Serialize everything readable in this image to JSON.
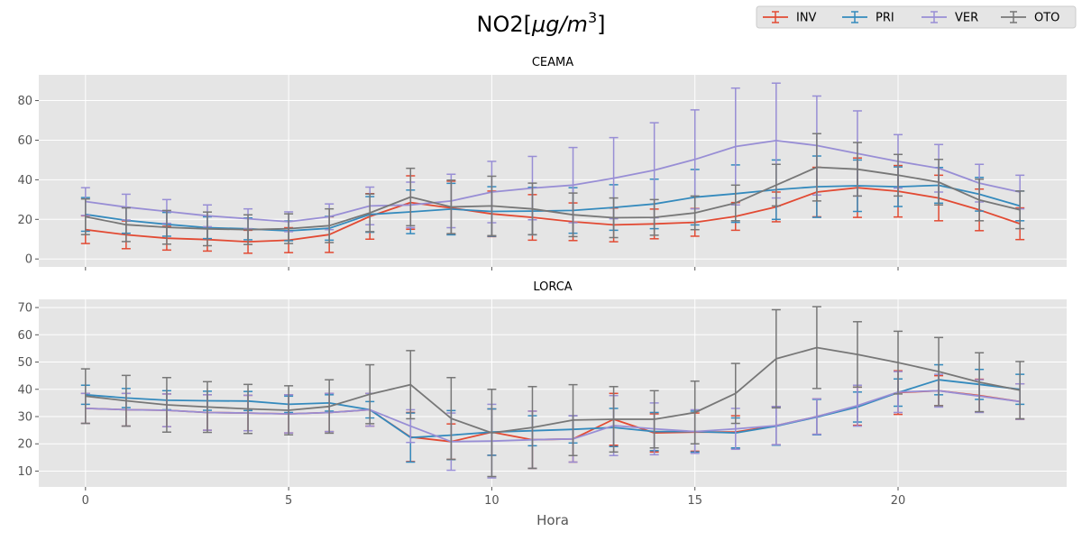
{
  "figure": {
    "title_plain": "NO2[",
    "title_math": "μg/m",
    "title_sup": "3",
    "title_close": "]",
    "xlabel": "Hora"
  },
  "colors": {
    "INV": "#E24A33",
    "PRI": "#348ABD",
    "VER": "#988ED5",
    "OTO": "#777777",
    "panel_bg": "#E5E5E5",
    "grid": "#ffffff"
  },
  "legend": {
    "placement": "top-right",
    "entries": [
      "INV",
      "PRI",
      "VER",
      "OTO"
    ]
  },
  "chart_data": [
    {
      "type": "line",
      "title": "CEAMA",
      "xlabel": "",
      "ylabel": "",
      "xlim": [
        -1.15,
        24.15
      ],
      "ylim": [
        -4,
        93
      ],
      "xticks": [
        0,
        5,
        10,
        15,
        20
      ],
      "yticks": [
        0,
        20,
        40,
        60,
        80
      ],
      "grid": true,
      "error_bars": true,
      "x": [
        0,
        1,
        2,
        3,
        4,
        5,
        6,
        7,
        8,
        9,
        10,
        11,
        12,
        13,
        14,
        15,
        16,
        17,
        18,
        19,
        20,
        21,
        22,
        23
      ],
      "series": [
        {
          "name": "INV",
          "values": [
            14.8,
            12.2,
            10.5,
            9.8,
            8.7,
            9.5,
            12.3,
            21.5,
            28.5,
            25.8,
            22.8,
            21.0,
            18.8,
            17.2,
            17.7,
            18.5,
            21.5,
            26.3,
            33.8,
            36.0,
            34.2,
            30.8,
            24.8,
            17.8
          ],
          "err": [
            7.0,
            7.0,
            6.0,
            5.8,
            5.8,
            6.3,
            9.0,
            11.5,
            13.5,
            13.5,
            11.5,
            11.5,
            9.5,
            8.5,
            7.5,
            7.0,
            7.0,
            7.5,
            12.5,
            15.0,
            13.0,
            11.5,
            10.5,
            8.0
          ]
        },
        {
          "name": "PRI",
          "values": [
            22.5,
            19.5,
            17.5,
            15.8,
            15.2,
            14.2,
            15.5,
            22.5,
            23.8,
            25.2,
            24.0,
            24.2,
            24.5,
            26.0,
            27.8,
            31.2,
            33.0,
            35.0,
            36.5,
            37.0,
            36.5,
            37.2,
            32.7,
            26.8
          ],
          "err": [
            8.5,
            6.5,
            6.0,
            5.5,
            5.5,
            5.0,
            6.0,
            9.0,
            11.0,
            13.0,
            12.5,
            12.0,
            11.5,
            11.5,
            12.5,
            14.0,
            14.5,
            15.0,
            15.5,
            13.0,
            10.0,
            9.0,
            8.5,
            7.5
          ]
        },
        {
          "name": "VER",
          "values": [
            29.0,
            26.2,
            24.0,
            21.8,
            20.3,
            18.8,
            21.3,
            26.8,
            27.3,
            29.3,
            33.8,
            35.8,
            37.3,
            40.8,
            44.8,
            50.3,
            56.8,
            59.8,
            57.3,
            53.3,
            49.3,
            45.8,
            38.3,
            33.8
          ],
          "err": [
            7.0,
            6.5,
            6.0,
            5.5,
            5.0,
            5.0,
            6.5,
            9.5,
            11.5,
            13.5,
            15.5,
            16.0,
            19.0,
            20.5,
            24.0,
            25.0,
            29.5,
            29.0,
            25.0,
            21.5,
            13.5,
            12.0,
            9.5,
            8.5
          ]
        },
        {
          "name": "OTO",
          "values": [
            21.3,
            17.3,
            16.0,
            15.2,
            14.8,
            15.3,
            16.8,
            23.3,
            31.3,
            26.3,
            26.8,
            25.3,
            22.3,
            20.8,
            21.0,
            23.3,
            28.3,
            37.3,
            46.3,
            45.3,
            42.3,
            38.8,
            29.8,
            24.8
          ],
          "err": [
            9.0,
            8.5,
            8.5,
            8.5,
            7.5,
            7.5,
            8.5,
            9.5,
            14.5,
            13.5,
            15.0,
            13.0,
            11.0,
            10.0,
            9.0,
            8.5,
            9.0,
            10.5,
            17.0,
            13.5,
            10.5,
            11.5,
            10.5,
            9.5
          ]
        }
      ]
    },
    {
      "type": "line",
      "title": "LORCA",
      "xlabel": "Hora",
      "ylabel": "",
      "xlim": [
        -1.15,
        24.15
      ],
      "ylim": [
        4.2,
        73
      ],
      "xticks": [
        0,
        5,
        10,
        15,
        20
      ],
      "yticks": [
        10,
        20,
        30,
        40,
        50,
        60,
        70
      ],
      "grid": true,
      "error_bars": true,
      "x": [
        0,
        1,
        2,
        3,
        4,
        5,
        6,
        7,
        8,
        9,
        10,
        11,
        12,
        13,
        14,
        15,
        16,
        17,
        18,
        19,
        20,
        21,
        22,
        23
      ],
      "series": [
        {
          "name": "INV",
          "values": [
            33.0,
            32.5,
            32.3,
            31.5,
            31.3,
            31.0,
            31.5,
            32.5,
            22.5,
            20.8,
            24.3,
            21.5,
            21.8,
            29.0,
            24.0,
            24.3,
            24.3,
            26.7,
            30.0,
            33.8,
            38.8,
            39.5,
            37.7,
            35.5
          ],
          "err": [
            5.5,
            6.0,
            6.0,
            6.5,
            6.5,
            7.0,
            7.0,
            6.0,
            9.0,
            6.5,
            8.5,
            10.5,
            8.5,
            9.5,
            7.0,
            7.0,
            6.0,
            7.0,
            6.5,
            7.0,
            8.0,
            5.5,
            6.0,
            6.5
          ]
        },
        {
          "name": "PRI",
          "values": [
            38.0,
            36.8,
            36.0,
            35.8,
            35.7,
            34.5,
            35.0,
            32.5,
            22.3,
            23.2,
            24.3,
            24.8,
            25.3,
            26.0,
            24.5,
            24.5,
            24.0,
            26.5,
            29.8,
            33.5,
            38.8,
            43.5,
            41.8,
            40.0
          ],
          "err": [
            3.5,
            3.5,
            3.5,
            3.5,
            3.5,
            3.0,
            3.0,
            3.0,
            9.0,
            9.0,
            8.5,
            5.5,
            5.0,
            7.0,
            7.0,
            7.5,
            5.5,
            7.0,
            6.5,
            5.5,
            5.0,
            5.5,
            5.5,
            5.5
          ]
        },
        {
          "name": "VER",
          "values": [
            33.0,
            32.5,
            32.3,
            31.5,
            31.3,
            31.0,
            31.5,
            32.5,
            26.5,
            20.8,
            21.0,
            21.5,
            21.8,
            26.7,
            25.5,
            24.5,
            25.5,
            26.7,
            30.0,
            34.0,
            39.0,
            39.5,
            37.5,
            35.5
          ],
          "err": [
            5.5,
            6.0,
            6.0,
            6.5,
            6.5,
            7.0,
            7.0,
            6.0,
            6.0,
            10.5,
            13.5,
            10.5,
            8.5,
            11.0,
            9.5,
            8.0,
            7.5,
            7.0,
            6.5,
            7.5,
            7.5,
            6.0,
            6.0,
            6.5
          ]
        },
        {
          "name": "OTO",
          "values": [
            37.5,
            35.8,
            34.3,
            33.5,
            32.8,
            32.3,
            33.7,
            38.2,
            41.7,
            29.3,
            24.0,
            26.0,
            28.7,
            29.0,
            29.0,
            31.5,
            38.5,
            51.2,
            55.3,
            52.8,
            49.8,
            46.5,
            42.6,
            39.7
          ],
          "err": [
            10.0,
            9.3,
            10.0,
            9.3,
            9.0,
            9.0,
            9.8,
            10.8,
            12.5,
            15.0,
            16.0,
            15.0,
            13.0,
            12.0,
            10.5,
            11.5,
            11.0,
            18.0,
            15.0,
            12.0,
            11.5,
            12.5,
            10.8,
            10.5
          ]
        }
      ]
    }
  ]
}
